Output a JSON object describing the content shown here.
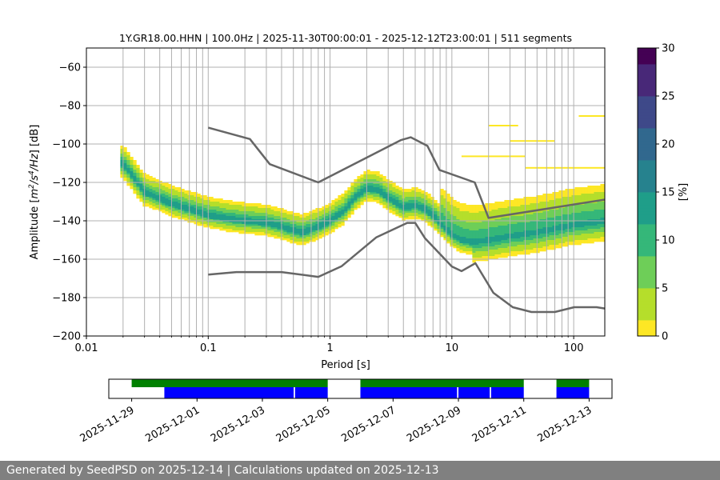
{
  "chart_data": [
    {
      "type": "heatmap",
      "title": "1Y.GR18.00.HHN | 100.0Hz | 2025-11-30T00:00:01 - 2025-12-12T23:00:01 | 511 segments",
      "xlabel": "Period [s]",
      "ylabel_parts": [
        "Amplitude [",
        "m",
        "2",
        "/s",
        "4",
        "/Hz",
        "] [dB]"
      ],
      "x_scale": "log",
      "xlim": [
        0.01,
        180
      ],
      "ylim": [
        -200,
        -50
      ],
      "x_ticks": [
        {
          "value": 0.01,
          "label": "0.01"
        },
        {
          "value": 0.1,
          "label": "0.1"
        },
        {
          "value": 1,
          "label": "1"
        },
        {
          "value": 10,
          "label": "10"
        },
        {
          "value": 100,
          "label": "100"
        }
      ],
      "y_ticks": [
        {
          "value": -200,
          "label": "−200"
        },
        {
          "value": -180,
          "label": "−180"
        },
        {
          "value": -160,
          "label": "−160"
        },
        {
          "value": -140,
          "label": "−140"
        },
        {
          "value": -120,
          "label": "−120"
        },
        {
          "value": -100,
          "label": "−100"
        },
        {
          "value": -80,
          "label": "−80"
        },
        {
          "value": -60,
          "label": "−60"
        }
      ],
      "grid": true,
      "colorbar": {
        "label": "[%]",
        "range": [
          0,
          30
        ],
        "ticks": [
          {
            "value": 0,
            "label": "0"
          },
          {
            "value": 5,
            "label": "5"
          },
          {
            "value": 10,
            "label": "10"
          },
          {
            "value": 15,
            "label": "15"
          },
          {
            "value": 20,
            "label": "20"
          },
          {
            "value": 25,
            "label": "25"
          },
          {
            "value": 30,
            "label": "30"
          }
        ],
        "colormap": [
          "#fde725",
          "#b5de2b",
          "#6ece58",
          "#35b779",
          "#1f9e89",
          "#26828e",
          "#31688e",
          "#3e4989",
          "#482878",
          "#440154"
        ]
      },
      "mode_curve": {
        "periods": [
          0.02,
          0.03,
          0.05,
          0.1,
          0.15,
          0.2,
          0.3,
          0.4,
          0.5,
          0.6,
          0.8,
          1,
          1.3,
          1.6,
          2,
          2.5,
          3,
          4,
          5,
          6,
          7,
          8,
          10,
          12,
          15,
          20,
          30,
          50,
          100,
          180
        ],
        "values": [
          -110,
          -125,
          -131,
          -137,
          -139,
          -140,
          -141,
          -143,
          -145,
          -146,
          -143,
          -140,
          -135,
          -128,
          -123,
          -124,
          -128,
          -133,
          -132,
          -134,
          -137,
          -141,
          -147,
          -150,
          -151,
          -150,
          -148,
          -146,
          -142,
          -140
        ],
        "color": "#1a9b8a"
      },
      "high_noise_model": {
        "name": "NHNM",
        "color": "#666666",
        "periods": [
          0.1,
          0.22,
          0.32,
          0.8,
          3.8,
          4.6,
          6.3,
          7.9,
          15.4,
          20,
          354.8
        ],
        "values": [
          -91.5,
          -97.4,
          -110.5,
          -120.0,
          -98.0,
          -96.5,
          -101.0,
          -113.5,
          -120.0,
          -138.5,
          -126.0
        ]
      },
      "low_noise_model": {
        "name": "NLNM",
        "color": "#666666",
        "periods": [
          0.1,
          0.17,
          0.4,
          0.8,
          1.24,
          2.4,
          4.3,
          5.0,
          6.0,
          10.0,
          12.0,
          15.6,
          21.9,
          31.6,
          45.0,
          70.0,
          101.0,
          154.0,
          180.0
        ],
        "values": [
          -168.0,
          -166.7,
          -166.7,
          -169.2,
          -163.7,
          -148.6,
          -141.1,
          -141.1,
          -149.0,
          -163.8,
          -166.2,
          -162.1,
          -177.5,
          -185.0,
          -187.5,
          -187.5,
          -185.0,
          -185.0,
          -185.7
        ]
      }
    },
    {
      "type": "timeline",
      "date_ticks": [
        "2025-11-29",
        "2025-12-01",
        "2025-12-03",
        "2025-12-05",
        "2025-12-07",
        "2025-12-09",
        "2025-12-11",
        "2025-12-13"
      ],
      "xlim_days_from_first_tick": [
        -0.7,
        14.7
      ],
      "data_available": {
        "color": "#008000",
        "spans": [
          [
            "2025-11-29",
            "2025-12-05"
          ],
          [
            "2025-12-06",
            "2025-12-11"
          ],
          [
            "2025-12-12",
            "2025-12-13"
          ]
        ]
      },
      "psd_segments": {
        "color": "#0000ff",
        "spans": [
          [
            "2025-11-30",
            "2025-12-03T23:00"
          ],
          [
            "2025-12-04",
            "2025-12-05"
          ],
          [
            "2025-12-06",
            "2025-12-08T23:00"
          ],
          [
            "2025-12-09",
            "2025-12-09T23:00"
          ],
          [
            "2025-12-10",
            "2025-12-11"
          ],
          [
            "2025-12-12",
            "2025-12-13"
          ]
        ]
      }
    }
  ],
  "footer": {
    "text": "Generated by SeedPSD on 2025-12-14 | Calculations updated on 2025-12-13"
  }
}
